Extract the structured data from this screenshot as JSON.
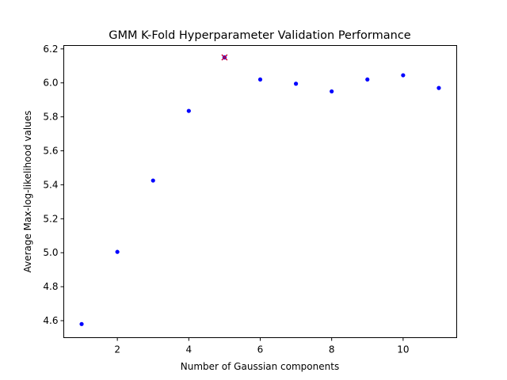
{
  "chart_data": {
    "type": "scatter",
    "title": "GMM K-Fold Hyperparameter Validation Performance",
    "xlabel": "Number of Gaussian components",
    "ylabel": "Average Max-log-likelihood values",
    "xlim": [
      0.5,
      11.5
    ],
    "ylim": [
      4.5,
      6.22
    ],
    "xticks": [
      2,
      4,
      6,
      8,
      10
    ],
    "xtick_labels": [
      "2",
      "4",
      "6",
      "8",
      "10"
    ],
    "yticks": [
      4.6,
      4.8,
      5.0,
      5.2,
      5.4,
      5.6,
      5.8,
      6.0,
      6.2
    ],
    "ytick_labels": [
      "4.6",
      "4.8",
      "5.0",
      "5.2",
      "5.4",
      "5.6",
      "5.8",
      "6.0",
      "6.2"
    ],
    "grid": false,
    "series": [
      {
        "marker": "dot",
        "color": "#0000ff",
        "x": [
          1,
          2,
          3,
          4,
          5,
          6,
          7,
          8,
          9,
          10,
          11
        ],
        "y": [
          4.58,
          5.005,
          5.425,
          5.835,
          6.15,
          6.02,
          5.995,
          5.95,
          6.02,
          6.045,
          5.97
        ]
      },
      {
        "marker": "x",
        "color": "#cc0033",
        "x": [
          5
        ],
        "y": [
          6.15
        ]
      }
    ]
  }
}
